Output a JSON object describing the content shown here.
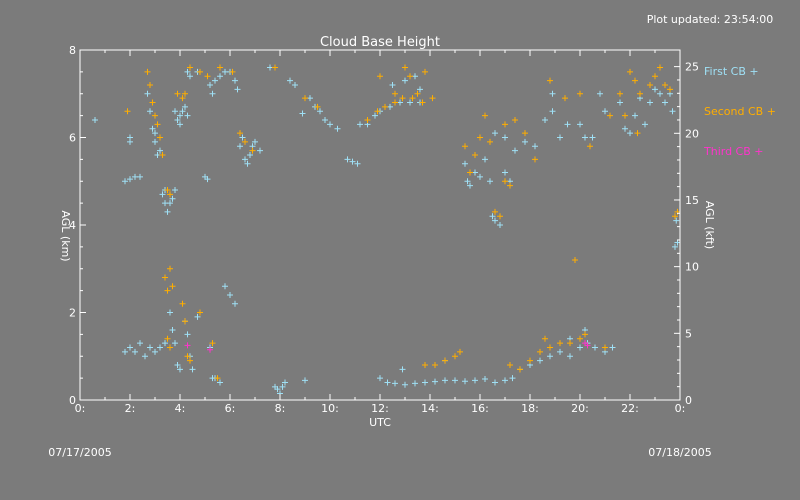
{
  "updated_label": "Plot updated: 23:54:00",
  "start_date": "07/17/2005",
  "end_date": "07/18/2005",
  "chart_data": {
    "type": "scatter",
    "title": "Cloud Base Height",
    "xlabel": "UTC",
    "ylabel_left": "AGL (km)",
    "ylabel_right": "AGL (kft)",
    "xlim": [
      0,
      24
    ],
    "ylim": [
      0,
      8
    ],
    "ylim_right": [
      0,
      26.2467
    ],
    "x_ticks": [
      0,
      2,
      4,
      6,
      8,
      10,
      12,
      14,
      16,
      18,
      20,
      22,
      24
    ],
    "x_tick_labels": [
      "0:",
      "2:",
      "4:",
      "6:",
      "8:",
      "10:",
      "12:",
      "14:",
      "16:",
      "18:",
      "20:",
      "22:",
      "0:"
    ],
    "y_ticks": [
      0,
      2,
      4,
      6,
      8
    ],
    "y_tick_labels": [
      "0",
      "2",
      "4",
      "6",
      "8"
    ],
    "y_right_ticks": [
      0,
      5,
      10,
      15,
      20,
      25
    ],
    "y_right_tick_labels": [
      "0",
      "5",
      "10",
      "15",
      "20",
      "25"
    ],
    "grid": false,
    "legend_position": "right",
    "colors": {
      "first": "#9fe0f5",
      "second": "#ffae00",
      "third": "#ff33cc"
    },
    "series": [
      {
        "name": "First CB",
        "marker": "+",
        "points": [
          [
            0.6,
            6.4
          ],
          [
            2.0,
            5.9
          ],
          [
            2.0,
            6.0
          ],
          [
            1.8,
            5.0
          ],
          [
            2.0,
            5.05
          ],
          [
            2.2,
            5.1
          ],
          [
            2.4,
            5.1
          ],
          [
            2.7,
            7.0
          ],
          [
            2.8,
            6.6
          ],
          [
            2.9,
            6.2
          ],
          [
            3.0,
            5.9
          ],
          [
            3.1,
            5.6
          ],
          [
            3.0,
            6.1
          ],
          [
            3.2,
            5.7
          ],
          [
            3.3,
            4.7
          ],
          [
            3.4,
            4.5
          ],
          [
            3.5,
            4.3
          ],
          [
            3.6,
            4.5
          ],
          [
            3.7,
            4.6
          ],
          [
            3.8,
            4.8
          ],
          [
            3.4,
            4.8
          ],
          [
            3.9,
            6.4
          ],
          [
            4.0,
            6.5
          ],
          [
            4.1,
            6.6
          ],
          [
            4.2,
            6.7
          ],
          [
            4.0,
            6.3
          ],
          [
            4.3,
            6.5
          ],
          [
            3.8,
            6.6
          ],
          [
            4.3,
            7.5
          ],
          [
            4.4,
            7.4
          ],
          [
            4.7,
            7.5
          ],
          [
            5.0,
            5.1
          ],
          [
            5.1,
            5.05
          ],
          [
            5.2,
            7.2
          ],
          [
            5.3,
            7.0
          ],
          [
            5.4,
            7.3
          ],
          [
            5.6,
            7.4
          ],
          [
            5.8,
            7.5
          ],
          [
            6.0,
            7.5
          ],
          [
            6.2,
            7.3
          ],
          [
            6.3,
            7.1
          ],
          [
            6.5,
            6.0
          ],
          [
            6.4,
            5.8
          ],
          [
            6.6,
            5.5
          ],
          [
            6.7,
            5.4
          ],
          [
            6.8,
            5.6
          ],
          [
            6.9,
            5.8
          ],
          [
            7.0,
            5.9
          ],
          [
            7.2,
            5.7
          ],
          [
            7.6,
            7.6
          ],
          [
            7.8,
            7.6
          ],
          [
            8.4,
            7.3
          ],
          [
            8.6,
            7.2
          ],
          [
            8.9,
            6.55
          ],
          [
            9.2,
            6.9
          ],
          [
            9.4,
            6.7
          ],
          [
            9.6,
            6.6
          ],
          [
            9.8,
            6.4
          ],
          [
            10.0,
            6.3
          ],
          [
            10.3,
            6.2
          ],
          [
            10.7,
            5.5
          ],
          [
            10.9,
            5.45
          ],
          [
            11.1,
            5.4
          ],
          [
            11.2,
            6.3
          ],
          [
            11.5,
            6.3
          ],
          [
            11.8,
            6.5
          ],
          [
            12.0,
            6.6
          ],
          [
            12.4,
            6.7
          ],
          [
            12.8,
            6.8
          ],
          [
            13.2,
            6.8
          ],
          [
            13.6,
            6.8
          ],
          [
            12.5,
            7.2
          ],
          [
            13.0,
            7.3
          ],
          [
            13.4,
            7.4
          ],
          [
            13.6,
            7.1
          ],
          [
            1.8,
            1.1
          ],
          [
            2.0,
            1.2
          ],
          [
            2.2,
            1.1
          ],
          [
            2.4,
            1.3
          ],
          [
            2.6,
            1.0
          ],
          [
            2.8,
            1.2
          ],
          [
            3.0,
            1.1
          ],
          [
            3.2,
            1.2
          ],
          [
            3.4,
            1.3
          ],
          [
            3.6,
            2.0
          ],
          [
            3.7,
            1.6
          ],
          [
            3.8,
            1.3
          ],
          [
            3.9,
            0.8
          ],
          [
            4.0,
            0.7
          ],
          [
            4.2,
            1.8
          ],
          [
            4.3,
            1.5
          ],
          [
            4.4,
            1.0
          ],
          [
            4.5,
            0.7
          ],
          [
            4.7,
            1.9
          ],
          [
            4.8,
            2.0
          ],
          [
            5.2,
            1.2
          ],
          [
            5.3,
            0.5
          ],
          [
            5.4,
            0.5
          ],
          [
            5.6,
            0.4
          ],
          [
            5.8,
            2.6
          ],
          [
            6.0,
            2.4
          ],
          [
            6.2,
            2.2
          ],
          [
            7.8,
            0.3
          ],
          [
            7.9,
            0.25
          ],
          [
            8.0,
            0.15
          ],
          [
            8.1,
            0.3
          ],
          [
            8.2,
            0.4
          ],
          [
            9.0,
            0.45
          ],
          [
            12.0,
            0.5
          ],
          [
            12.3,
            0.4
          ],
          [
            12.6,
            0.38
          ],
          [
            13.0,
            0.35
          ],
          [
            13.4,
            0.38
          ],
          [
            13.8,
            0.4
          ],
          [
            14.2,
            0.42
          ],
          [
            14.6,
            0.45
          ],
          [
            15.0,
            0.45
          ],
          [
            15.4,
            0.43
          ],
          [
            15.8,
            0.45
          ],
          [
            16.2,
            0.48
          ],
          [
            16.6,
            0.4
          ],
          [
            17.0,
            0.45
          ],
          [
            17.3,
            0.5
          ],
          [
            17.6,
            0.7
          ],
          [
            18.0,
            0.8
          ],
          [
            18.4,
            0.9
          ],
          [
            18.8,
            1.0
          ],
          [
            19.2,
            1.1
          ],
          [
            19.6,
            1.0
          ],
          [
            20.0,
            1.2
          ],
          [
            20.3,
            1.3
          ],
          [
            20.6,
            1.2
          ],
          [
            21.0,
            1.1
          ],
          [
            21.3,
            1.2
          ],
          [
            20.2,
            1.6
          ],
          [
            19.6,
            1.4
          ],
          [
            12.9,
            0.7
          ],
          [
            14.6,
            0.9
          ],
          [
            15.4,
            5.4
          ],
          [
            15.5,
            5.0
          ],
          [
            15.6,
            4.9
          ],
          [
            15.8,
            5.2
          ],
          [
            16.0,
            5.1
          ],
          [
            16.2,
            5.5
          ],
          [
            16.4,
            5.0
          ],
          [
            16.5,
            4.2
          ],
          [
            16.6,
            4.1
          ],
          [
            16.8,
            4.0
          ],
          [
            17.0,
            5.2
          ],
          [
            17.2,
            5.0
          ],
          [
            16.6,
            6.1
          ],
          [
            17.0,
            6.0
          ],
          [
            17.4,
            5.7
          ],
          [
            17.8,
            5.9
          ],
          [
            18.2,
            5.8
          ],
          [
            18.6,
            6.4
          ],
          [
            18.9,
            6.6
          ],
          [
            19.2,
            6.0
          ],
          [
            19.5,
            6.3
          ],
          [
            20.0,
            6.3
          ],
          [
            20.2,
            6.0
          ],
          [
            20.5,
            6.0
          ],
          [
            21.0,
            6.6
          ],
          [
            21.6,
            6.8
          ],
          [
            21.8,
            6.2
          ],
          [
            22.0,
            6.1
          ],
          [
            22.2,
            6.5
          ],
          [
            22.4,
            6.9
          ],
          [
            22.6,
            6.3
          ],
          [
            22.8,
            6.8
          ],
          [
            23.0,
            7.1
          ],
          [
            23.2,
            7.0
          ],
          [
            23.4,
            6.8
          ],
          [
            23.6,
            7.0
          ],
          [
            23.7,
            6.6
          ],
          [
            23.8,
            3.5
          ],
          [
            23.9,
            3.6
          ],
          [
            23.85,
            4.1
          ],
          [
            18.9,
            7.0
          ],
          [
            20.8,
            7.0
          ]
        ]
      },
      {
        "name": "Second CB",
        "marker": "+",
        "points": [
          [
            1.9,
            6.6
          ],
          [
            2.7,
            7.5
          ],
          [
            2.8,
            7.2
          ],
          [
            2.9,
            6.8
          ],
          [
            3.0,
            6.5
          ],
          [
            3.1,
            6.3
          ],
          [
            3.2,
            6.0
          ],
          [
            3.3,
            5.6
          ],
          [
            3.5,
            4.8
          ],
          [
            3.6,
            4.7
          ],
          [
            3.9,
            7.0
          ],
          [
            4.1,
            6.9
          ],
          [
            4.2,
            7.0
          ],
          [
            4.4,
            7.6
          ],
          [
            4.8,
            7.5
          ],
          [
            5.1,
            7.4
          ],
          [
            5.6,
            7.6
          ],
          [
            6.1,
            7.5
          ],
          [
            6.4,
            6.1
          ],
          [
            6.6,
            5.9
          ],
          [
            6.9,
            5.7
          ],
          [
            7.8,
            7.6
          ],
          [
            9.0,
            6.9
          ],
          [
            9.5,
            6.7
          ],
          [
            11.5,
            6.4
          ],
          [
            11.9,
            6.6
          ],
          [
            12.2,
            6.7
          ],
          [
            12.6,
            6.8
          ],
          [
            12.9,
            6.9
          ],
          [
            13.3,
            6.9
          ],
          [
            13.7,
            6.8
          ],
          [
            14.1,
            6.9
          ],
          [
            12.0,
            7.4
          ],
          [
            12.6,
            7.0
          ],
          [
            13.0,
            7.6
          ],
          [
            13.2,
            7.4
          ],
          [
            13.8,
            7.5
          ],
          [
            13.5,
            7.0
          ],
          [
            3.4,
            2.8
          ],
          [
            3.5,
            2.5
          ],
          [
            3.6,
            3.0
          ],
          [
            3.7,
            2.6
          ],
          [
            3.5,
            1.4
          ],
          [
            3.6,
            1.2
          ],
          [
            4.1,
            2.2
          ],
          [
            4.2,
            1.8
          ],
          [
            4.3,
            1.0
          ],
          [
            4.4,
            0.9
          ],
          [
            4.8,
            2.0
          ],
          [
            5.3,
            1.3
          ],
          [
            5.5,
            0.5
          ],
          [
            13.8,
            0.8
          ],
          [
            14.2,
            0.8
          ],
          [
            14.6,
            0.9
          ],
          [
            15.0,
            1.0
          ],
          [
            15.2,
            1.1
          ],
          [
            17.6,
            0.7
          ],
          [
            18.0,
            0.9
          ],
          [
            18.4,
            1.1
          ],
          [
            18.8,
            1.2
          ],
          [
            19.2,
            1.3
          ],
          [
            19.6,
            1.3
          ],
          [
            20.0,
            1.4
          ],
          [
            20.2,
            1.5
          ],
          [
            21.0,
            1.2
          ],
          [
            17.2,
            0.8
          ],
          [
            18.6,
            1.4
          ],
          [
            19.8,
            3.2
          ],
          [
            15.4,
            5.8
          ],
          [
            15.6,
            5.2
          ],
          [
            15.8,
            5.6
          ],
          [
            16.0,
            6.0
          ],
          [
            16.2,
            6.5
          ],
          [
            16.4,
            5.9
          ],
          [
            16.6,
            4.3
          ],
          [
            16.8,
            4.2
          ],
          [
            17.0,
            5.0
          ],
          [
            17.2,
            4.9
          ],
          [
            17.0,
            6.3
          ],
          [
            17.4,
            6.4
          ],
          [
            17.8,
            6.1
          ],
          [
            18.2,
            5.5
          ],
          [
            18.8,
            7.3
          ],
          [
            19.4,
            6.9
          ],
          [
            20.0,
            7.0
          ],
          [
            20.4,
            5.8
          ],
          [
            21.2,
            6.5
          ],
          [
            21.6,
            7.0
          ],
          [
            22.0,
            7.5
          ],
          [
            22.2,
            7.3
          ],
          [
            22.4,
            7.0
          ],
          [
            22.8,
            7.2
          ],
          [
            23.0,
            7.4
          ],
          [
            23.2,
            7.6
          ],
          [
            23.4,
            7.2
          ],
          [
            23.6,
            7.1
          ],
          [
            23.8,
            4.2
          ],
          [
            23.9,
            4.3
          ],
          [
            22.3,
            6.1
          ],
          [
            21.8,
            6.5
          ]
        ]
      },
      {
        "name": "Third CB",
        "marker": "+",
        "points": [
          [
            4.3,
            1.25
          ],
          [
            5.2,
            1.15
          ],
          [
            20.2,
            1.3
          ],
          [
            20.3,
            1.25
          ]
        ]
      }
    ]
  }
}
